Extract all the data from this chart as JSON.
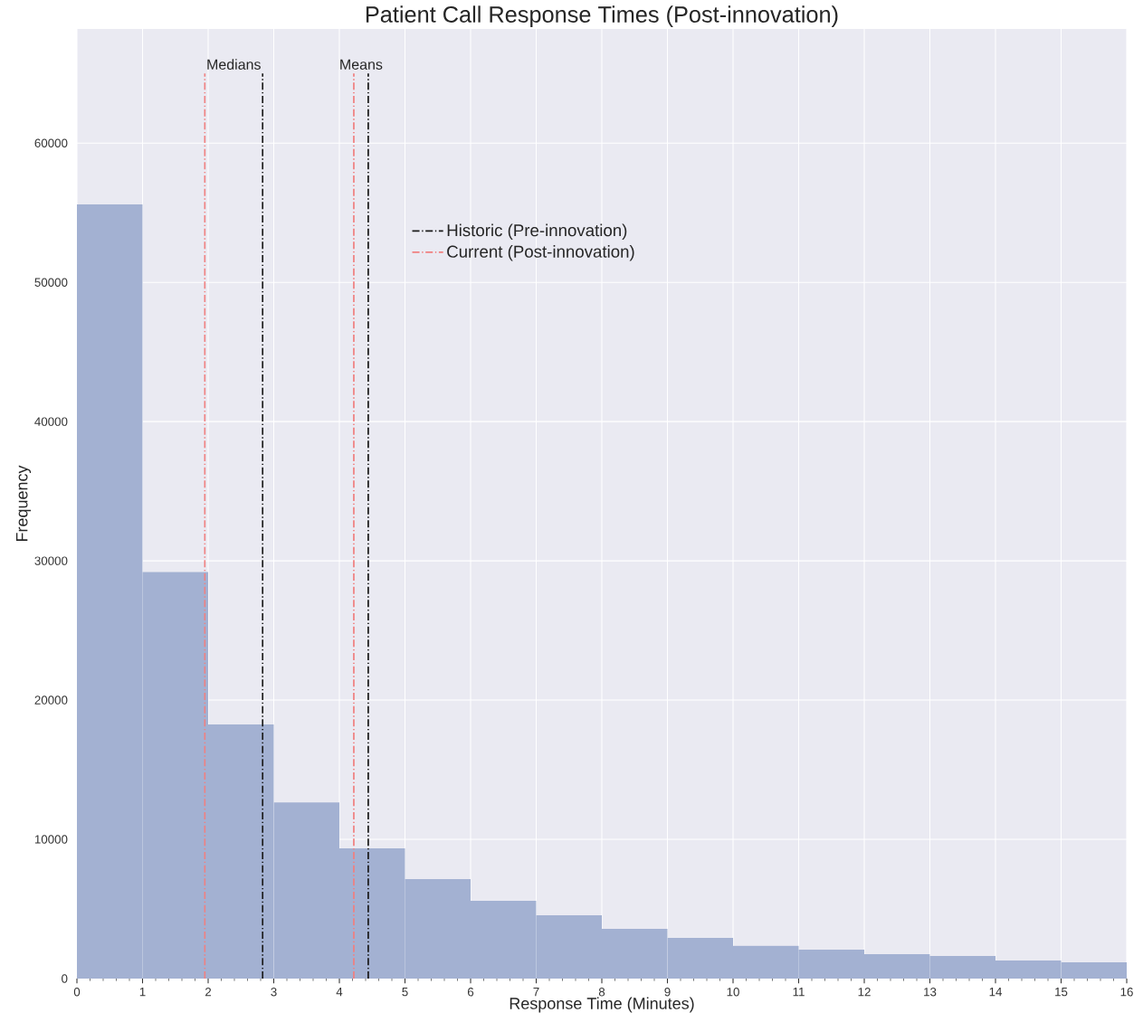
{
  "chart_data": {
    "type": "histogram",
    "title": "Patient Call Response Times (Post-innovation)",
    "xlabel": "Response Time (Minutes)",
    "ylabel": "Frequency",
    "bins": [
      0,
      1,
      2,
      3,
      4,
      5,
      6,
      7,
      8,
      9,
      10,
      11,
      12,
      13,
      14,
      15,
      16
    ],
    "values": [
      55600,
      29200,
      18250,
      12650,
      9350,
      7150,
      5580,
      4550,
      3570,
      2920,
      2350,
      2080,
      1750,
      1620,
      1300,
      1170
    ],
    "color": "#a3b1d2",
    "series": [
      {
        "type": "line",
        "name": "Historic (Pre-innovation)",
        "color": "#1a1a1a",
        "line_style": "dashdot",
        "x": [
          2.83,
          2.83
        ],
        "values": [
          0,
          65000
        ]
      },
      {
        "type": "line",
        "color": "#1a1a1a",
        "line_style": "dashdot",
        "x": [
          4.44,
          4.44
        ],
        "values": [
          0,
          65000
        ]
      },
      {
        "type": "line",
        "name": "Current (Post-innovation)",
        "color": "#f08080",
        "line_style": "dashdot",
        "x": [
          1.95,
          1.95
        ],
        "values": [
          0,
          65000
        ]
      },
      {
        "type": "line",
        "color": "#f08080",
        "line_style": "dashdot",
        "x": [
          4.22,
          4.22
        ],
        "values": [
          0,
          65000
        ]
      }
    ],
    "annotations": [
      "Medians",
      "Means"
    ],
    "xlim": [
      0,
      16
    ],
    "ylim": [
      0,
      68200
    ],
    "xticks": [
      0,
      1,
      2,
      3,
      4,
      5,
      6,
      7,
      8,
      9,
      10,
      11,
      12,
      13,
      14,
      15,
      16
    ],
    "yticks": [
      0,
      10000,
      20000,
      30000,
      40000,
      50000,
      60000
    ],
    "grid": true,
    "legend": "top center"
  }
}
